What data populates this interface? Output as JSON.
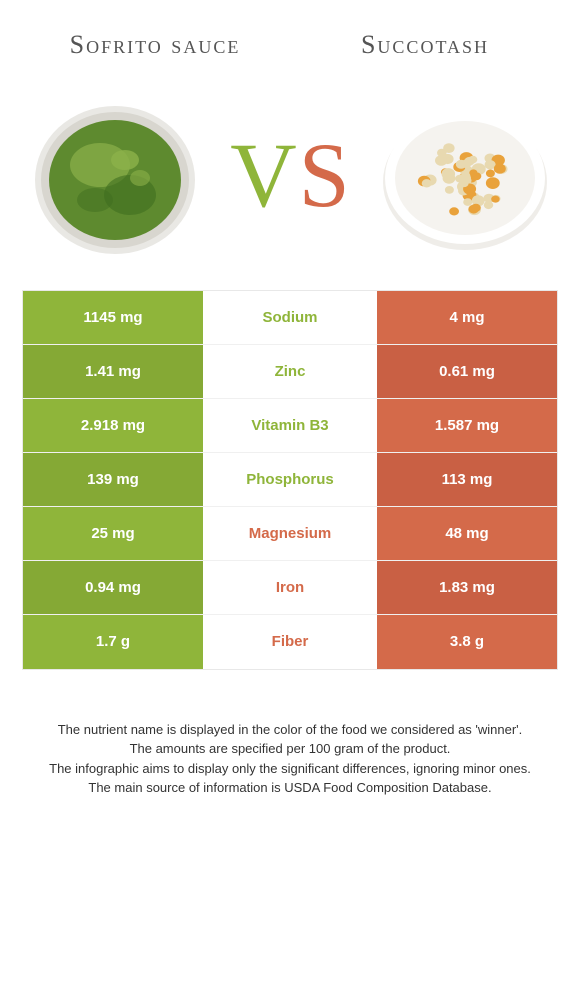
{
  "leftFood": {
    "title": "Sofrito sauce",
    "color": "#8fb53a",
    "image": {
      "bowl_rim": "#e9e8e4",
      "bowl_inner": "#d8d6cf",
      "fill_base": "#5e8a2f",
      "fill_light": "#8cb14a",
      "fill_dark": "#3f6e1f"
    }
  },
  "rightFood": {
    "title": "Succotash",
    "color": "#d46a4a",
    "image": {
      "plate": "#f5f3ef",
      "plate_rim": "#ffffff",
      "beans": "#e8d9b0",
      "corn": "#e9a23b",
      "shadow": "#d8d2c8"
    }
  },
  "vs": {
    "v_color": "#8fb53a",
    "s_color": "#d46a4a"
  },
  "nutrients": [
    {
      "name": "Sodium",
      "left": "1145 mg",
      "right": "4 mg",
      "winner": "left"
    },
    {
      "name": "Zinc",
      "left": "1.41 mg",
      "right": "0.61 mg",
      "winner": "left"
    },
    {
      "name": "Vitamin B3",
      "left": "2.918 mg",
      "right": "1.587 mg",
      "winner": "left"
    },
    {
      "name": "Phosphorus",
      "left": "139 mg",
      "right": "113 mg",
      "winner": "left"
    },
    {
      "name": "Magnesium",
      "left": "25 mg",
      "right": "48 mg",
      "winner": "right"
    },
    {
      "name": "Iron",
      "left": "0.94 mg",
      "right": "1.83 mg",
      "winner": "right"
    },
    {
      "name": "Fiber",
      "left": "1.7 g",
      "right": "3.8 g",
      "winner": "right"
    }
  ],
  "row_colors": {
    "left_bg": [
      "#8fb53a",
      "#85a935"
    ],
    "right_bg": [
      "#d46a4a",
      "#c96044"
    ]
  },
  "footnotes": [
    "The nutrient name is displayed in the color of the food we considered as 'winner'.",
    "The amounts are specified per 100 gram of the product.",
    "The infographic aims to display only the significant differences, ignoring minor ones.",
    "The main source of information is USDA Food Composition Database."
  ]
}
